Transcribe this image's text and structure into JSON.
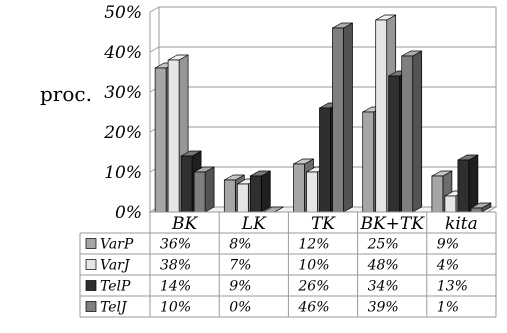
{
  "chart_data": {
    "type": "bar",
    "bar_style": "3d-clustered",
    "ylabel": "proc.",
    "ylim": [
      0,
      50
    ],
    "yticks": [
      "0%",
      "10%",
      "20%",
      "30%",
      "40%",
      "50%"
    ],
    "grid": true,
    "legend": "data-table",
    "categories": [
      "BK",
      "LK",
      "TK",
      "BK+TK",
      "kita"
    ],
    "series": [
      {
        "name": "VarP",
        "values": [
          36,
          8,
          12,
          25,
          9
        ],
        "labels": [
          "36%",
          "8%",
          "12%",
          "25%",
          "9%"
        ],
        "color": "#a6a6a6"
      },
      {
        "name": "VarJ",
        "values": [
          38,
          7,
          10,
          48,
          4
        ],
        "labels": [
          "38%",
          "7%",
          "10%",
          "48%",
          "4%"
        ],
        "color": "#e6e6e6"
      },
      {
        "name": "TelP",
        "values": [
          14,
          9,
          26,
          34,
          13
        ],
        "labels": [
          "14%",
          "9%",
          "26%",
          "34%",
          "13%"
        ],
        "color": "#2f2f2f"
      },
      {
        "name": "TelJ",
        "values": [
          10,
          0,
          46,
          39,
          1
        ],
        "labels": [
          "10%",
          "0%",
          "46%",
          "39%",
          "1%"
        ],
        "color": "#7f7f7f"
      }
    ]
  }
}
